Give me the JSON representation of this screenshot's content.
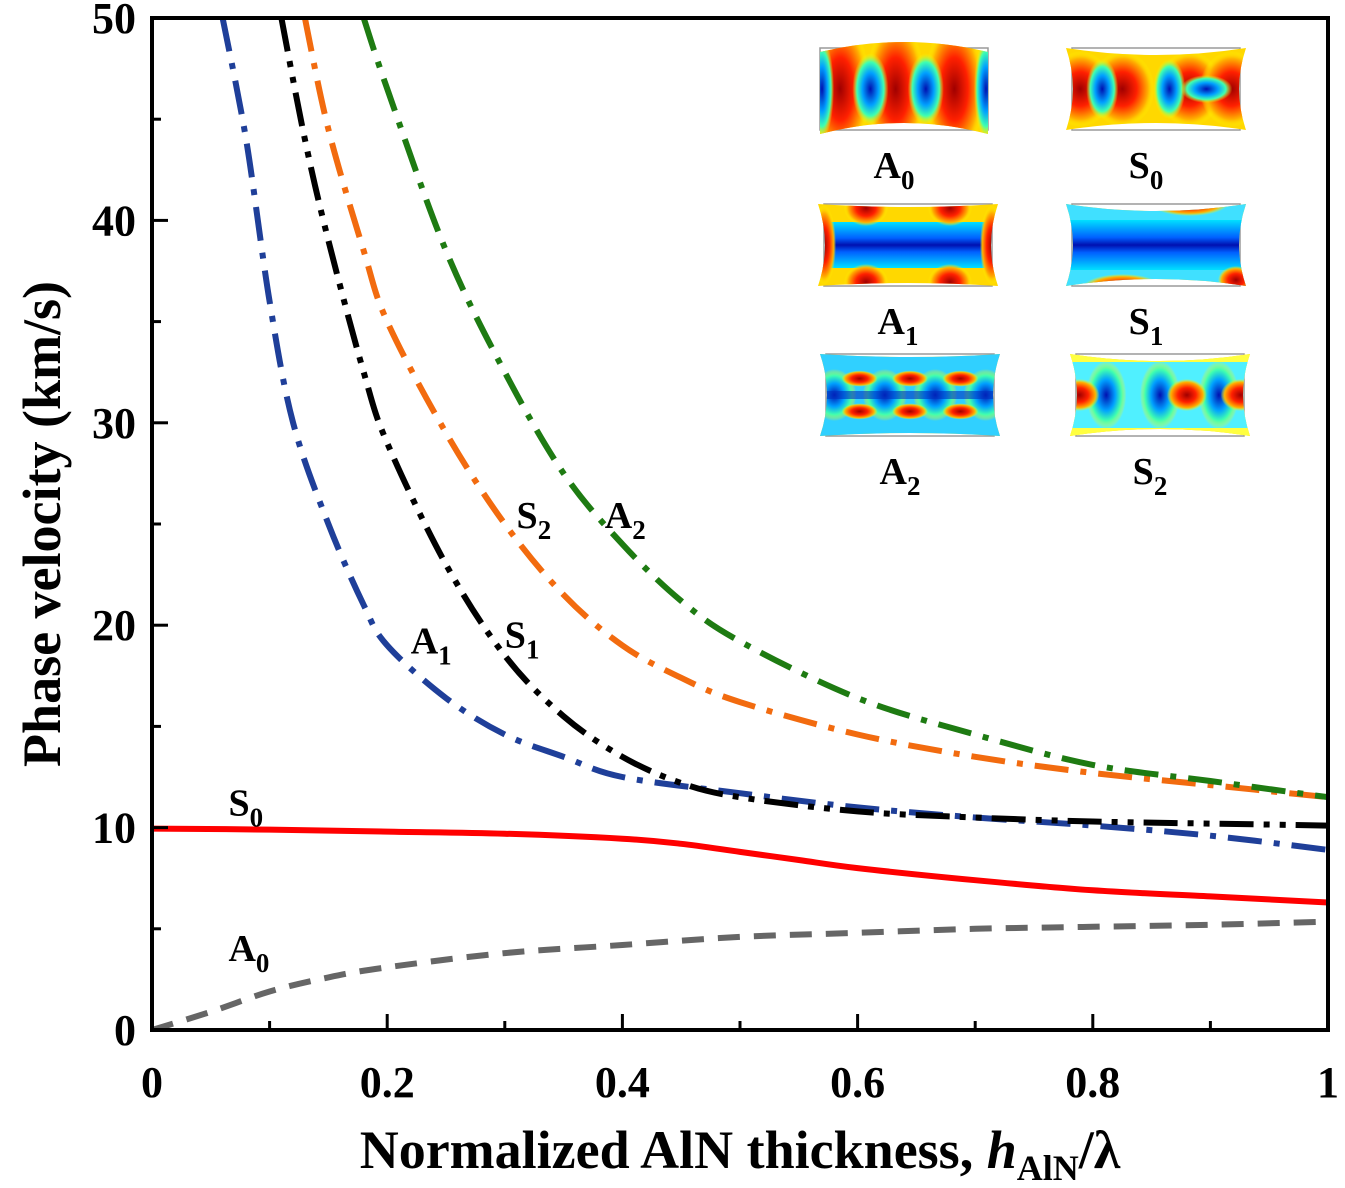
{
  "chart_data": {
    "type": "line",
    "title": "",
    "xlabel_main": "Normalized AlN thickness, ",
    "xlabel_var": "h",
    "xlabel_sub": "AlN",
    "xlabel_tail": "/λ",
    "ylabel": "Phase velocity (km/s)",
    "xlim": [
      0,
      1
    ],
    "ylim": [
      0,
      50
    ],
    "x_ticks": [
      {
        "value": 0,
        "label": "0"
      },
      {
        "value": 0.2,
        "label": "0.2"
      },
      {
        "value": 0.4,
        "label": "0.4"
      },
      {
        "value": 0.6,
        "label": "0.6"
      },
      {
        "value": 0.8,
        "label": "0.8"
      },
      {
        "value": 1,
        "label": "1"
      }
    ],
    "y_ticks": [
      {
        "value": 0,
        "label": "0"
      },
      {
        "value": 10,
        "label": "10"
      },
      {
        "value": 20,
        "label": "20"
      },
      {
        "value": 30,
        "label": "30"
      },
      {
        "value": 40,
        "label": "40"
      },
      {
        "value": 50,
        "label": "50"
      }
    ],
    "grid": false,
    "series": [
      {
        "name": "A0",
        "color": "#666666",
        "style": "dash",
        "x": [
          0,
          0.05,
          0.1,
          0.15,
          0.2,
          0.3,
          0.4,
          0.5,
          0.6,
          0.7,
          0.8,
          0.9,
          1.0
        ],
        "y": [
          0,
          0.9,
          1.9,
          2.6,
          3.1,
          3.8,
          4.2,
          4.6,
          4.8,
          5.0,
          5.1,
          5.2,
          5.35
        ]
      },
      {
        "name": "S0",
        "color": "#ff0000",
        "style": "solid",
        "x": [
          0,
          0.1,
          0.2,
          0.3,
          0.4,
          0.45,
          0.5,
          0.55,
          0.6,
          0.7,
          0.8,
          0.9,
          1.0
        ],
        "y": [
          9.95,
          9.9,
          9.8,
          9.7,
          9.45,
          9.2,
          8.8,
          8.4,
          8.0,
          7.4,
          6.9,
          6.6,
          6.3
        ]
      },
      {
        "name": "A1",
        "color": "#1f3f99",
        "style": "dashdot",
        "x": [
          0.06,
          0.08,
          0.1,
          0.12,
          0.15,
          0.18,
          0.2,
          0.25,
          0.3,
          0.35,
          0.4,
          0.5,
          0.6,
          0.7,
          0.8,
          0.9,
          1.0
        ],
        "y": [
          50,
          44,
          36,
          30,
          25,
          21,
          19,
          16.4,
          14.6,
          13.5,
          12.5,
          11.7,
          11,
          10.5,
          10.1,
          9.6,
          8.9
        ]
      },
      {
        "name": "S1",
        "color": "#000000",
        "style": "dashdotdot",
        "x": [
          0.11,
          0.13,
          0.15,
          0.18,
          0.2,
          0.25,
          0.3,
          0.35,
          0.4,
          0.45,
          0.5,
          0.6,
          0.7,
          0.8,
          0.9,
          1.0
        ],
        "y": [
          50,
          44,
          39,
          32.5,
          29,
          23,
          18.5,
          15.5,
          13.5,
          12.2,
          11.5,
          10.8,
          10.5,
          10.3,
          10.2,
          10.1
        ]
      },
      {
        "name": "S2",
        "color": "#f26b0f",
        "style": "dashdot",
        "x": [
          0.13,
          0.15,
          0.18,
          0.2,
          0.25,
          0.3,
          0.35,
          0.4,
          0.45,
          0.5,
          0.6,
          0.7,
          0.8,
          0.9,
          1.0
        ],
        "y": [
          50,
          44.5,
          38.5,
          35,
          29.5,
          25,
          21.5,
          19,
          17.4,
          16.2,
          14.6,
          13.5,
          12.7,
          12.1,
          11.5
        ]
      },
      {
        "name": "A2",
        "color": "#1e7b12",
        "style": "dashdot",
        "x": [
          0.18,
          0.2,
          0.25,
          0.3,
          0.35,
          0.4,
          0.45,
          0.5,
          0.6,
          0.7,
          0.8,
          0.9,
          1.0
        ],
        "y": [
          50,
          46.5,
          38.5,
          32.5,
          27.5,
          24,
          21.2,
          19.2,
          16.4,
          14.6,
          13.1,
          12.3,
          11.5
        ]
      }
    ],
    "annotations": [
      {
        "base": "S",
        "sub": "0",
        "x": 0.065,
        "y": 10.6
      },
      {
        "base": "A",
        "sub": "0",
        "x": 0.065,
        "y": 3.4
      },
      {
        "base": "A",
        "sub": "1",
        "x": 0.22,
        "y": 18.6
      },
      {
        "base": "S",
        "sub": "1",
        "x": 0.3,
        "y": 18.9
      },
      {
        "base": "S",
        "sub": "2",
        "x": 0.31,
        "y": 24.8
      },
      {
        "base": "A",
        "sub": "2",
        "x": 0.385,
        "y": 24.8
      }
    ],
    "inset_labels": [
      {
        "base": "A",
        "sub": "0"
      },
      {
        "base": "S",
        "sub": "0"
      },
      {
        "base": "A",
        "sub": "1"
      },
      {
        "base": "S",
        "sub": "1"
      },
      {
        "base": "A",
        "sub": "2"
      },
      {
        "base": "S",
        "sub": "2"
      }
    ],
    "legend": "none"
  }
}
